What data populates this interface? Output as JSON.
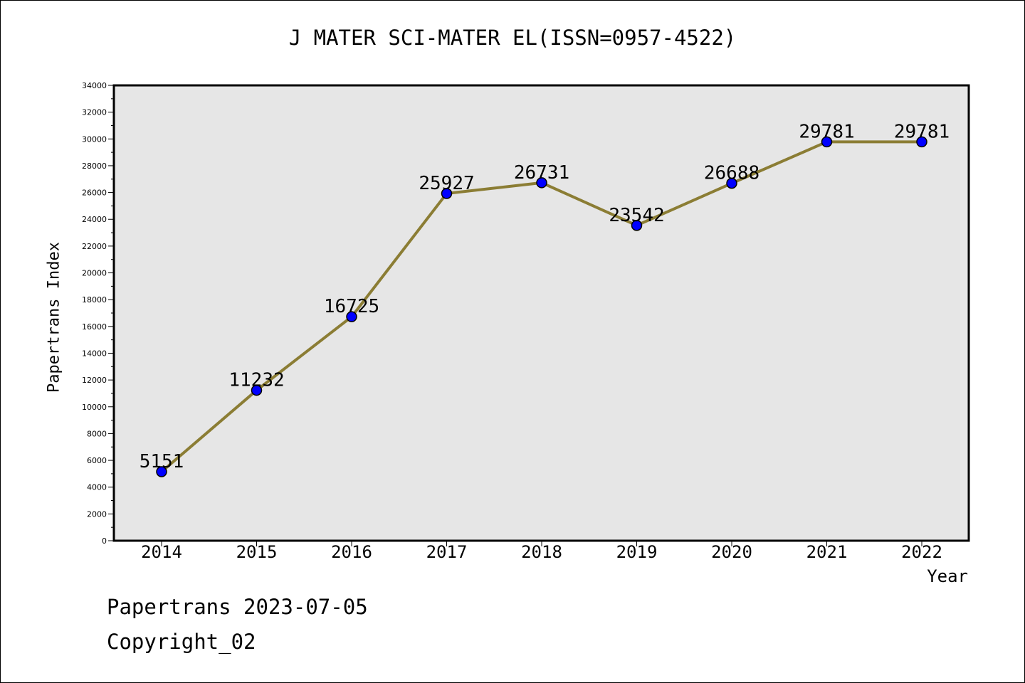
{
  "title": "J MATER SCI-MATER EL(ISSN=0957-4522)",
  "footer": {
    "line1": "Papertrans 2023-07-05",
    "line2": "Copyright_02"
  },
  "colors": {
    "plot_bg": "#e6e6e6",
    "line": "#8b7d34",
    "marker": "#0000ff",
    "frame": "#000000"
  },
  "chart_data": {
    "type": "line",
    "title": "J MATER SCI-MATER EL(ISSN=0957-4522)",
    "xlabel": "Year",
    "ylabel": "Papertrans Index",
    "categories": [
      "2014",
      "2015",
      "2016",
      "2017",
      "2018",
      "2019",
      "2020",
      "2021",
      "2022"
    ],
    "values": [
      5151,
      11232,
      16725,
      25927,
      26731,
      23542,
      26688,
      29781,
      29781
    ],
    "data_labels": [
      "5151",
      "11232",
      "16725",
      "25927",
      "26731",
      "23542",
      "26688",
      "29781",
      "29781"
    ],
    "ylim": [
      0,
      34000
    ],
    "yticks": [
      0,
      2000,
      4000,
      6000,
      8000,
      10000,
      12000,
      14000,
      16000,
      18000,
      20000,
      22000,
      24000,
      26000,
      28000,
      30000,
      32000,
      34000
    ],
    "grid": false,
    "legend": "none"
  }
}
